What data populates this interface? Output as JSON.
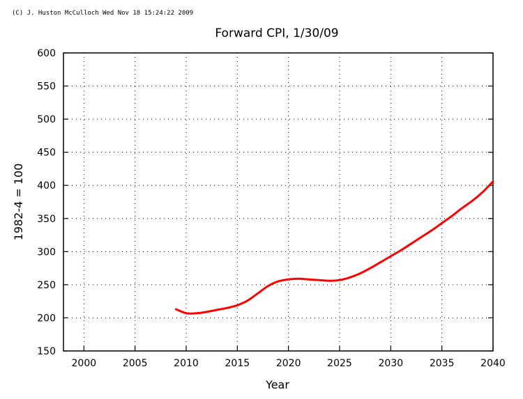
{
  "credit": "(C) J. Huston McCulloch Wed Nov 18 15:24:22 2009",
  "chart_data": {
    "type": "line",
    "title": "Forward CPI, 1/30/09",
    "xlabel": "Year",
    "ylabel": "1982-4 = 100",
    "xlim": [
      1998,
      2040
    ],
    "ylim": [
      150,
      600
    ],
    "xticks": [
      2000,
      2005,
      2010,
      2015,
      2020,
      2025,
      2030,
      2035,
      2040
    ],
    "yticks": [
      150,
      200,
      250,
      300,
      350,
      400,
      450,
      500,
      550,
      600
    ],
    "grid": true,
    "line_color": "#ff0000",
    "series": [
      {
        "x": [
          2009,
          2010,
          2011,
          2012,
          2013,
          2014,
          2015,
          2016,
          2017,
          2018,
          2019,
          2020,
          2021,
          2022,
          2023,
          2024,
          2025,
          2026,
          2027,
          2028,
          2029,
          2030,
          2031,
          2032,
          2033,
          2034,
          2035,
          2036,
          2037,
          2038,
          2039,
          2040
        ],
        "y": [
          213,
          207,
          207,
          209,
          212,
          215,
          219,
          226,
          237,
          248,
          255,
          258,
          259,
          258,
          257,
          256,
          257,
          261,
          267,
          275,
          284,
          293,
          302,
          312,
          322,
          332,
          343,
          354,
          366,
          377,
          390,
          406
        ]
      }
    ]
  }
}
